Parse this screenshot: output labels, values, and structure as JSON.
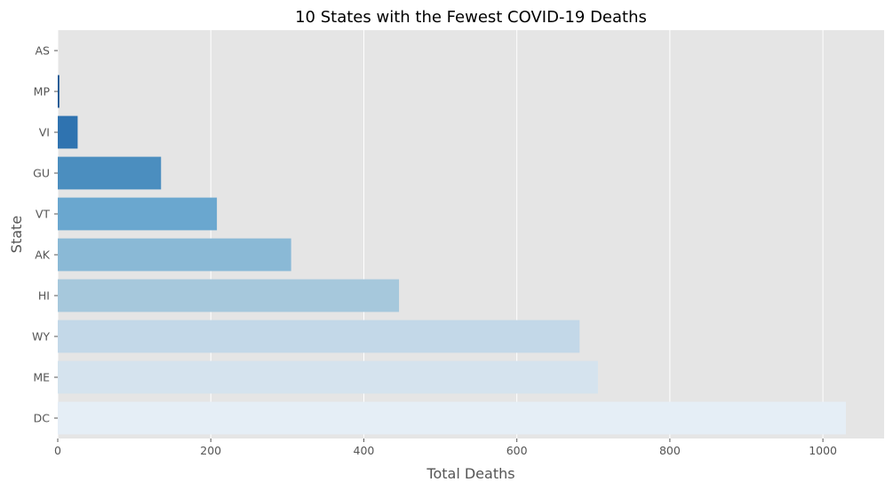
{
  "chart_data": {
    "type": "bar",
    "orientation": "horizontal",
    "title": "10 States with the Fewest COVID-19 Deaths",
    "xlabel": "Total Deaths",
    "ylabel": "State",
    "categories": [
      "AS",
      "MP",
      "VI",
      "GU",
      "VT",
      "AK",
      "HI",
      "WY",
      "ME",
      "DC"
    ],
    "values": [
      0,
      2,
      26,
      135,
      208,
      305,
      446,
      682,
      706,
      1030
    ],
    "xlim": [
      0,
      1080
    ],
    "xticks": [
      0,
      200,
      400,
      600,
      800,
      1000
    ],
    "grid": true,
    "legend": "none",
    "colors": [
      "#08306b",
      "#0b4a8c",
      "#2f73b0",
      "#4b8ebf",
      "#6aa7cf",
      "#8ab9d6",
      "#a6c8dc",
      "#c3d8e8",
      "#d5e3ee",
      "#e5eef6"
    ],
    "background": "#e5e5e5",
    "gridline_color": "#ffffff"
  }
}
